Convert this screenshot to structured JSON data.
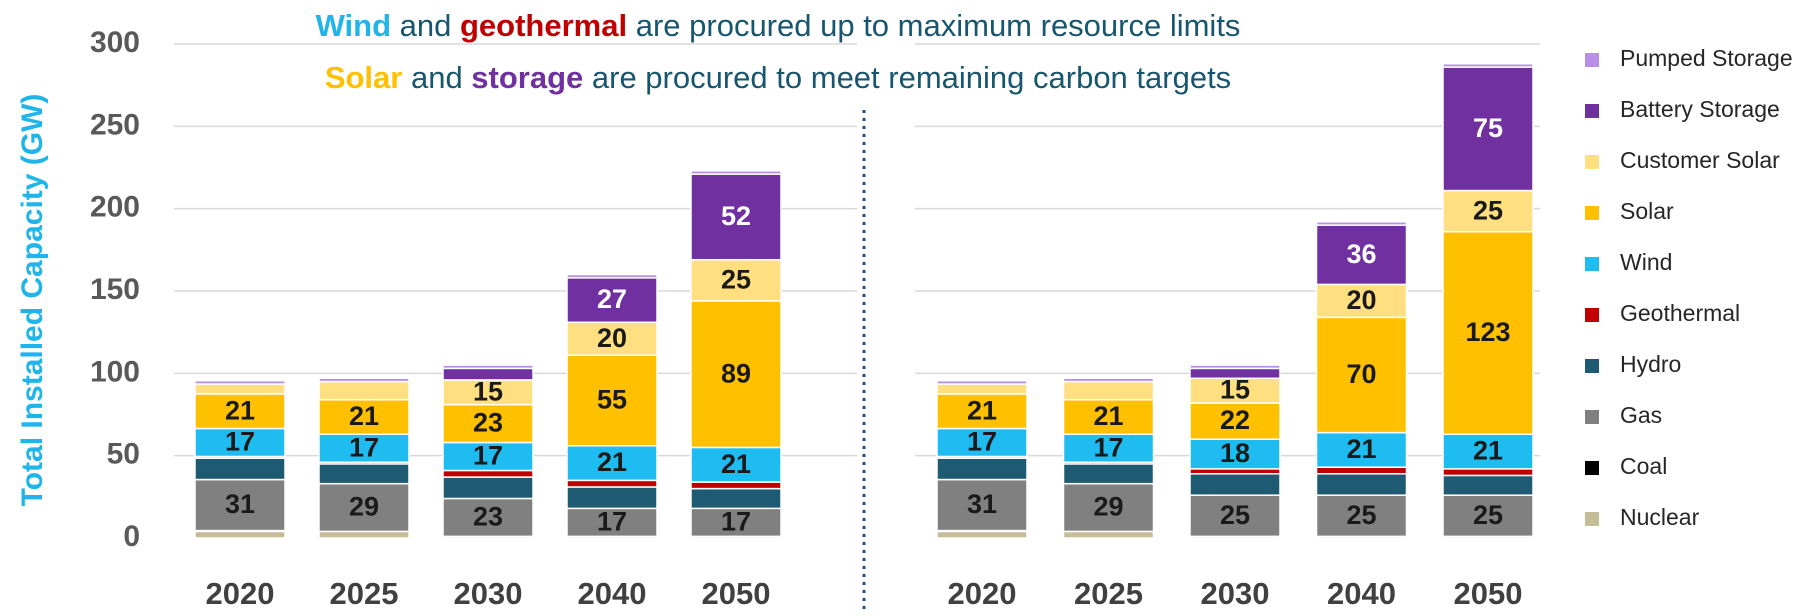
{
  "chart_data": [
    {
      "type": "bar",
      "stacked": true,
      "title_lines": [
        [
          {
            "text": "Wind",
            "color": "#1fb5ea"
          },
          {
            "text": " and ",
            "color": "#17566e"
          },
          {
            "text": "geothermal",
            "color": "#c00000"
          },
          {
            "text": " are procured up to maximum resource limits",
            "color": "#17566e"
          }
        ],
        [
          {
            "text": "Solar",
            "color": "#ffc000"
          },
          {
            "text": " and ",
            "color": "#17566e"
          },
          {
            "text": "storage",
            "color": "#7030a0"
          },
          {
            "text": " are procured to meet remaining carbon targets",
            "color": "#17566e"
          }
        ]
      ],
      "ylabel": "Total Installed Capacity (GW)",
      "ylim": [
        0,
        300
      ],
      "yticks": [
        0,
        50,
        100,
        150,
        200,
        250,
        300
      ],
      "grid": true,
      "categories": [
        "2020",
        "2025",
        "2030",
        "2040",
        "2050"
      ],
      "series": [
        {
          "name": "Nuclear",
          "color": "#c4bd97",
          "values": [
            4,
            4,
            1,
            1,
            1
          ]
        },
        {
          "name": "Coal",
          "color": "#000000",
          "values": [
            0.5,
            0,
            0,
            0,
            0
          ]
        },
        {
          "name": "Gas",
          "color": "#808080",
          "label_color": "#1a1a1a",
          "values": [
            31,
            29,
            23,
            17,
            17
          ]
        },
        {
          "name": "Hydro",
          "color": "#1f5a73",
          "values": [
            13,
            12,
            13,
            13,
            12
          ]
        },
        {
          "name": "Geothermal",
          "color": "#c00000",
          "values": [
            1,
            1,
            4,
            4,
            4
          ]
        },
        {
          "name": "Wind",
          "color": "#1fbcf2",
          "label_color": "#1a1a1a",
          "values": [
            17,
            17,
            17,
            21,
            21
          ]
        },
        {
          "name": "Solar",
          "color": "#ffc000",
          "label_color": "#1a1a1a",
          "values": [
            21,
            21,
            23,
            55,
            89
          ]
        },
        {
          "name": "Customer Solar",
          "color": "#ffdf7f",
          "label_color": "#1a1a1a",
          "values": [
            6,
            11,
            15,
            20,
            25
          ]
        },
        {
          "name": "Battery Storage",
          "color": "#7030a0",
          "label_color": "#ffffff",
          "values": [
            0,
            0,
            7,
            27,
            52
          ]
        },
        {
          "name": "Pumped Storage",
          "color": "#b88ee6",
          "values": [
            2,
            2,
            2,
            2,
            2
          ]
        }
      ]
    },
    {
      "type": "bar",
      "stacked": true,
      "ylim": [
        0,
        300
      ],
      "yticks": [
        0,
        50,
        100,
        150,
        200,
        250,
        300
      ],
      "grid": true,
      "show_ytick_labels": false,
      "categories": [
        "2020",
        "2025",
        "2030",
        "2040",
        "2050"
      ],
      "series": [
        {
          "name": "Nuclear",
          "color": "#c4bd97",
          "values": [
            4,
            4,
            1,
            1,
            1
          ]
        },
        {
          "name": "Coal",
          "color": "#000000",
          "values": [
            0.5,
            0,
            0,
            0,
            0
          ]
        },
        {
          "name": "Gas",
          "color": "#808080",
          "label_color": "#1a1a1a",
          "values": [
            31,
            29,
            25,
            25,
            25
          ]
        },
        {
          "name": "Hydro",
          "color": "#1f5a73",
          "values": [
            13,
            12,
            13,
            13,
            12
          ]
        },
        {
          "name": "Geothermal",
          "color": "#c00000",
          "values": [
            1,
            1,
            3,
            4,
            4
          ]
        },
        {
          "name": "Wind",
          "color": "#1fbcf2",
          "label_color": "#1a1a1a",
          "values": [
            17,
            17,
            18,
            21,
            21
          ]
        },
        {
          "name": "Solar",
          "color": "#ffc000",
          "label_color": "#1a1a1a",
          "values": [
            21,
            21,
            22,
            70,
            123
          ]
        },
        {
          "name": "Customer Solar",
          "color": "#ffdf7f",
          "label_color": "#1a1a1a",
          "values": [
            6,
            11,
            15,
            20,
            25
          ]
        },
        {
          "name": "Battery Storage",
          "color": "#7030a0",
          "label_color": "#ffffff",
          "values": [
            0,
            0,
            6,
            36,
            75
          ]
        },
        {
          "name": "Pumped Storage",
          "color": "#b88ee6",
          "values": [
            2,
            2,
            2,
            2,
            2
          ]
        }
      ]
    }
  ]
}
